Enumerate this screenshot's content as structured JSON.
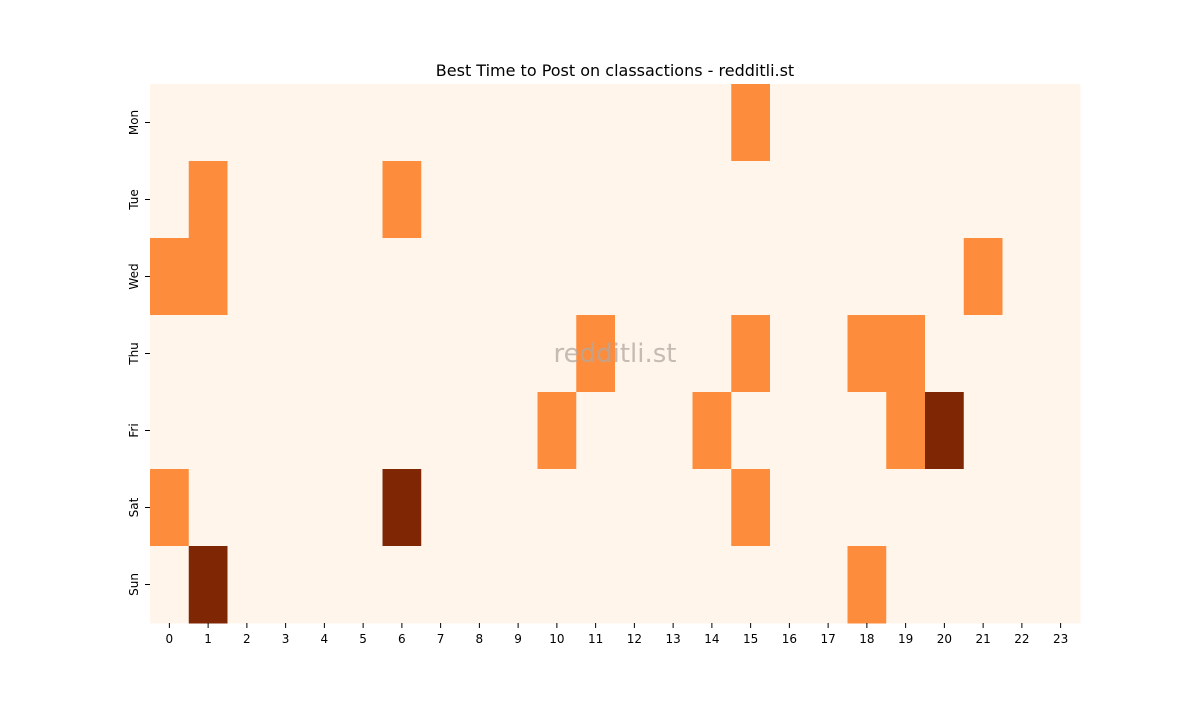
{
  "chart_data": {
    "type": "heatmap",
    "title": "Best Time to Post on classactions - redditli.st",
    "watermark": "redditli.st",
    "xlabel": "",
    "ylabel": "",
    "x": [
      "0",
      "1",
      "2",
      "3",
      "4",
      "5",
      "6",
      "7",
      "8",
      "9",
      "10",
      "11",
      "12",
      "13",
      "14",
      "15",
      "16",
      "17",
      "18",
      "19",
      "20",
      "21",
      "22",
      "23"
    ],
    "y": [
      "Mon",
      "Tue",
      "Wed",
      "Thu",
      "Fri",
      "Sat",
      "Sun"
    ],
    "values": [
      [
        0,
        0,
        0,
        0,
        0,
        0,
        0,
        0,
        0,
        0,
        0,
        0,
        0,
        0,
        0,
        1,
        0,
        0,
        0,
        0,
        0,
        0,
        0,
        0
      ],
      [
        0,
        1,
        0,
        0,
        0,
        0,
        1,
        0,
        0,
        0,
        0,
        0,
        0,
        0,
        0,
        0,
        0,
        0,
        0,
        0,
        0,
        0,
        0,
        0
      ],
      [
        1,
        1,
        0,
        0,
        0,
        0,
        0,
        0,
        0,
        0,
        0,
        0,
        0,
        0,
        0,
        0,
        0,
        0,
        0,
        0,
        0,
        1,
        0,
        0
      ],
      [
        0,
        0,
        0,
        0,
        0,
        0,
        0,
        0,
        0,
        0,
        0,
        1,
        0,
        0,
        0,
        1,
        0,
        0,
        1,
        1,
        0,
        0,
        0,
        0
      ],
      [
        0,
        0,
        0,
        0,
        0,
        0,
        0,
        0,
        0,
        0,
        1,
        0,
        0,
        0,
        1,
        0,
        0,
        0,
        0,
        1,
        2,
        0,
        0,
        0
      ],
      [
        1,
        0,
        0,
        0,
        0,
        0,
        2,
        0,
        0,
        0,
        0,
        0,
        0,
        0,
        0,
        1,
        0,
        0,
        0,
        0,
        0,
        0,
        0,
        0
      ],
      [
        0,
        2,
        0,
        0,
        0,
        0,
        0,
        0,
        0,
        0,
        0,
        0,
        0,
        0,
        0,
        0,
        0,
        0,
        1,
        0,
        0,
        0,
        0,
        0
      ]
    ],
    "colormap": [
      "#fff5eb",
      "#fd8d3c",
      "#7f2704"
    ],
    "colorbar": false,
    "grid": false
  }
}
